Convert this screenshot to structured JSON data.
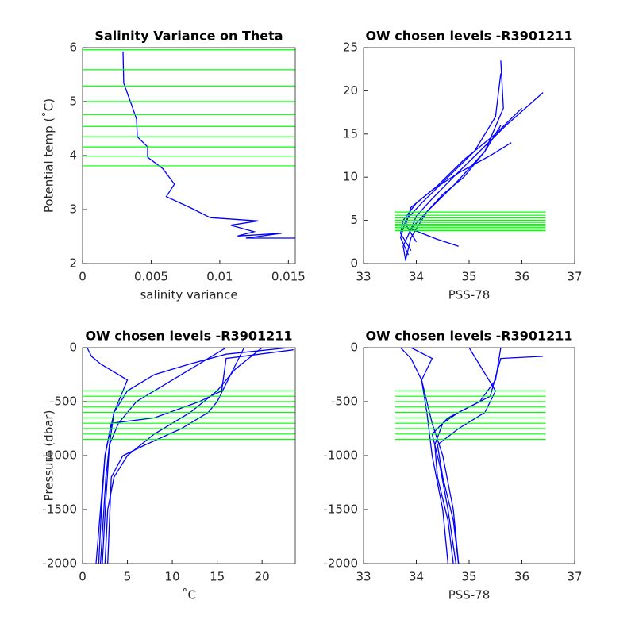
{
  "chart_data": [
    {
      "type": "line",
      "title": "Salinity Variance on Theta",
      "xlabel": "salinity variance",
      "ylabel": "Potential temp (˚C)",
      "xlim": [
        0,
        0.0155
      ],
      "ylim": [
        2,
        6
      ],
      "xticks": [
        0,
        0.005,
        0.01,
        0.015
      ],
      "yticks": [
        2,
        3,
        4,
        5,
        6
      ],
      "color": "#0000ff",
      "levels_color": "#00ff00",
      "levels": [
        5.96,
        5.59,
        5.29,
        5.0,
        4.76,
        4.54,
        4.35,
        4.16,
        3.99,
        3.81
      ],
      "series": [
        {
          "x": [
            0.00295,
            0.003,
            0.00353,
            0.00393,
            0.00399,
            0.00474,
            0.00474,
            0.00584,
            0.0067,
            0.0061,
            0.0079,
            0.0093,
            0.0128,
            0.0108,
            0.0125,
            0.0113,
            0.0145,
            0.0119,
            0.0155
          ],
          "values": [
            5.93,
            5.34,
            4.97,
            4.68,
            4.35,
            4.16,
            3.97,
            3.76,
            3.47,
            3.24,
            3.03,
            2.85,
            2.79,
            2.71,
            2.59,
            2.51,
            2.56,
            2.47,
            2.47
          ]
        }
      ]
    },
    {
      "type": "line",
      "title": "OW chosen levels -R3901211",
      "xlabel": "PSS-78",
      "xlim": [
        33,
        37
      ],
      "ylim": [
        0,
        25
      ],
      "xticks": [
        33,
        34,
        35,
        36,
        37
      ],
      "yticks": [
        0,
        5,
        10,
        15,
        20,
        25
      ],
      "color": "#0000ff",
      "levels_color": "#00ff00",
      "levels_x": [
        33.6,
        36.45
      ],
      "levels": [
        5.96,
        5.59,
        5.29,
        5.0,
        4.76,
        4.54,
        4.35,
        4.16,
        3.99,
        3.81
      ],
      "series": [
        {
          "x": [
            33.8,
            33.75,
            33.9,
            34.2,
            34.5,
            34.9,
            35.3,
            35.6
          ],
          "values": [
            0.3,
            2,
            4,
            6,
            8,
            10,
            13,
            16
          ]
        },
        {
          "x": [
            33.85,
            33.7,
            33.8,
            34.1,
            34.6,
            35.1,
            35.5,
            35.6
          ],
          "values": [
            1,
            3,
            5,
            7,
            10,
            13,
            17,
            22
          ]
        },
        {
          "x": [
            34.8,
            34.4,
            33.9,
            34.0,
            34.3,
            34.7,
            35.2,
            35.7,
            36.4
          ],
          "values": [
            2,
            2.8,
            4,
            5.5,
            7.5,
            10,
            13,
            16,
            19.8
          ]
        },
        {
          "x": [
            33.9,
            33.7,
            33.75,
            34.0,
            34.4,
            34.9,
            35.5,
            36.0
          ],
          "values": [
            1.5,
            3.5,
            5,
            7,
            9,
            12,
            15,
            18
          ]
        },
        {
          "x": [
            34.0,
            33.8,
            33.9,
            34.3,
            34.8,
            35.4,
            35.8
          ],
          "values": [
            2.5,
            4.5,
            6.5,
            8.5,
            10.5,
            12.5,
            14
          ]
        },
        {
          "x": [
            33.8,
            33.9,
            34.2,
            34.7,
            35.3,
            35.65,
            35.6
          ],
          "values": [
            0.5,
            3,
            6,
            9,
            13,
            18,
            23.5
          ]
        }
      ]
    },
    {
      "type": "line",
      "title": "OW chosen levels -R3901211",
      "xlabel": "˚C",
      "ylabel": "Pressure (dbar)",
      "xlim": [
        0,
        23.7
      ],
      "ylim": [
        -2000,
        0
      ],
      "xticks": [
        0,
        5,
        10,
        15,
        20
      ],
      "yticks": [
        -2000,
        -1500,
        -1000,
        -500,
        0
      ],
      "color": "#0000ff",
      "levels_color": "#00ff00",
      "levels": [
        -400,
        -450,
        -500,
        -550,
        -600,
        -650,
        -700,
        -750,
        -800,
        -850
      ],
      "series": [
        {
          "x": [
            1.5,
            2,
            2.5,
            3,
            3.5,
            5,
            8,
            12,
            16,
            23
          ],
          "values": [
            -2000,
            -1500,
            -1000,
            -800,
            -600,
            -400,
            -250,
            -150,
            -60,
            0
          ]
        },
        {
          "x": [
            2.5,
            2.8,
            3.5,
            5,
            8,
            12,
            15,
            17,
            20
          ],
          "values": [
            -2000,
            -1500,
            -1200,
            -1000,
            -800,
            -600,
            -400,
            -200,
            0
          ]
        },
        {
          "x": [
            2,
            2.3,
            2.6,
            3,
            4,
            6,
            10,
            14,
            16
          ],
          "values": [
            -2000,
            -1600,
            -1200,
            -900,
            -700,
            -500,
            -300,
            -100,
            0
          ]
        },
        {
          "x": [
            1.8,
            2.1,
            2.5,
            3.2,
            8,
            13,
            15.5,
            16,
            23.5
          ],
          "values": [
            -2000,
            -1500,
            -1000,
            -700,
            -650,
            -500,
            -400,
            -100,
            -20
          ]
        },
        {
          "x": [
            2.2,
            2.6,
            3,
            3.5,
            5,
            2,
            1,
            0.5
          ],
          "values": [
            -2000,
            -1400,
            -900,
            -600,
            -300,
            -150,
            -80,
            0
          ]
        },
        {
          "x": [
            2.8,
            3.2,
            4.5,
            7,
            11,
            14,
            15,
            18
          ],
          "values": [
            -2000,
            -1200,
            -1000,
            -900,
            -750,
            -600,
            -500,
            0
          ]
        }
      ]
    },
    {
      "type": "line",
      "title": "OW chosen levels -R3901211",
      "xlabel": "PSS-78",
      "xlim": [
        33,
        37
      ],
      "ylim": [
        -2000,
        0
      ],
      "xticks": [
        33,
        34,
        35,
        36,
        37
      ],
      "yticks": [
        -2000,
        -1500,
        -1000,
        -500,
        0
      ],
      "color": "#0000ff",
      "levels_color": "#00ff00",
      "levels_x": [
        33.6,
        36.45
      ],
      "levels": [
        -400,
        -450,
        -500,
        -550,
        -600,
        -650,
        -700,
        -750,
        -800,
        -850
      ],
      "series": [
        {
          "x": [
            34.8,
            34.7,
            34.5,
            34.3,
            34.2,
            34.1,
            33.9,
            33.7
          ],
          "values": [
            -2000,
            -1500,
            -1000,
            -700,
            -500,
            -300,
            -100,
            0
          ]
        },
        {
          "x": [
            34.7,
            34.6,
            34.4,
            34.35,
            34.5,
            34.8,
            35.2,
            35.5,
            35.6
          ],
          "values": [
            -2000,
            -1600,
            -1200,
            -900,
            -700,
            -600,
            -500,
            -300,
            0
          ]
        },
        {
          "x": [
            34.75,
            34.6,
            34.45,
            34.3,
            34.6,
            35.0,
            35.4,
            35.6,
            36.4
          ],
          "values": [
            -2000,
            -1500,
            -1100,
            -800,
            -650,
            -550,
            -450,
            -100,
            -80
          ]
        },
        {
          "x": [
            34.6,
            34.5,
            34.3,
            34.2,
            34.1,
            34.3,
            33.9
          ],
          "values": [
            -2000,
            -1500,
            -1000,
            -600,
            -300,
            -100,
            0
          ]
        },
        {
          "x": [
            34.8,
            34.7,
            34.5,
            34.4,
            34.8,
            35.3,
            35.5,
            35.0
          ],
          "values": [
            -2000,
            -1600,
            -1200,
            -900,
            -750,
            -600,
            -400,
            0
          ]
        }
      ]
    }
  ]
}
